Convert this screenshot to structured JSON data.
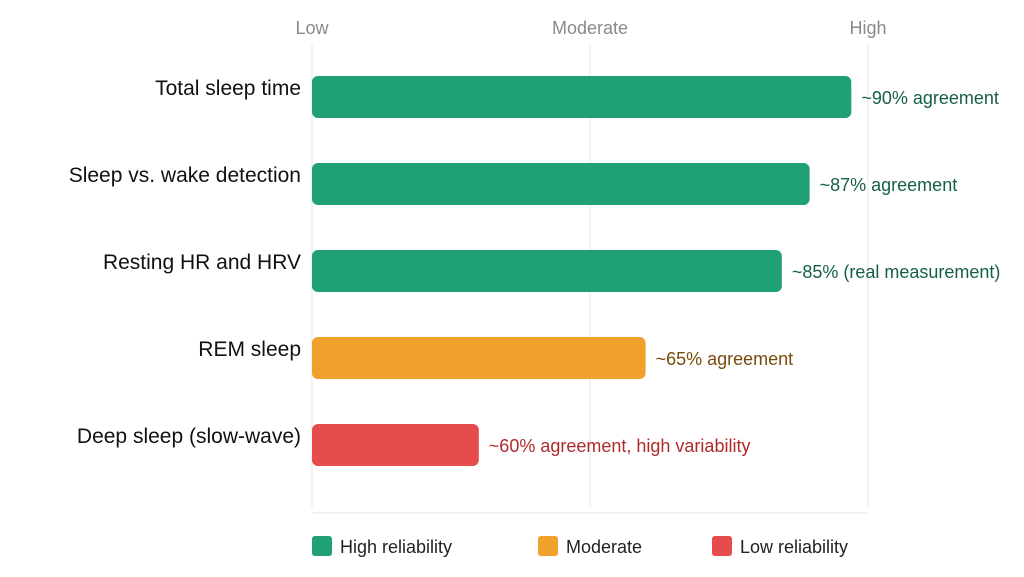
{
  "chart_data": {
    "type": "bar",
    "orientation": "horizontal",
    "x_scale": {
      "ticks": [
        "Low",
        "Moderate",
        "High"
      ],
      "range": [
        0,
        1
      ]
    },
    "categories": [
      "Total sleep time",
      "Sleep vs. wake detection",
      "Resting HR and HRV",
      "REM sleep",
      "Deep sleep (slow-wave)"
    ],
    "values": [
      0.97,
      0.895,
      0.845,
      0.6,
      0.3
    ],
    "data_labels": [
      "~90% agreement",
      "~87% agreement",
      "~85% (real measurement)",
      "~65% agreement",
      "~60% agreement, high variability"
    ],
    "reliability": [
      "high",
      "high",
      "high",
      "moderate",
      "low"
    ],
    "legend": {
      "position": "bottom",
      "items": [
        {
          "key": "high",
          "label": "High reliability",
          "color": "#1fa077",
          "text_color": "#155f48"
        },
        {
          "key": "moderate",
          "label": "Moderate",
          "color": "#f0a12b",
          "text_color": "#7a4a0a"
        },
        {
          "key": "low",
          "label": "Low reliability",
          "color": "#e54c4b",
          "text_color": "#b02a2a"
        }
      ]
    },
    "grid": true,
    "title": "",
    "xlabel": "",
    "ylabel": ""
  }
}
